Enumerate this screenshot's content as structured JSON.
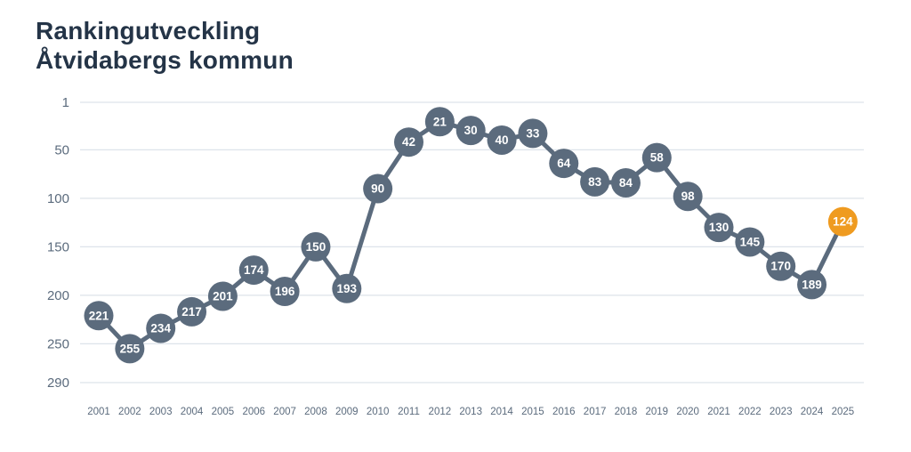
{
  "title": {
    "line1": "Rankingutveckling",
    "line2": "Åtvidabergs kommun"
  },
  "chart_data": {
    "type": "line",
    "title": "Rankingutveckling Åtvidabergs kommun",
    "x": [
      2001,
      2002,
      2003,
      2004,
      2005,
      2006,
      2007,
      2008,
      2009,
      2010,
      2011,
      2012,
      2013,
      2014,
      2015,
      2016,
      2017,
      2018,
      2019,
      2020,
      2021,
      2022,
      2023,
      2024,
      2025
    ],
    "values": [
      221,
      255,
      234,
      217,
      201,
      174,
      196,
      150,
      193,
      90,
      42,
      21,
      30,
      40,
      33,
      64,
      83,
      84,
      58,
      98,
      130,
      145,
      170,
      189,
      124
    ],
    "highlight_index": 24,
    "highlight_value": 124,
    "yticks": [
      1,
      50,
      100,
      150,
      200,
      250,
      290
    ],
    "ylim": [
      1,
      290
    ],
    "y_inverted": true,
    "xlabel": "",
    "ylabel": "",
    "grid": true,
    "legend": "none",
    "colors": {
      "point": "#5b6b7d",
      "line": "#5b6b7d",
      "highlight": "#ef9b20",
      "grid": "#dde3ea",
      "axis_label": "#5b6b7d",
      "value_text": "#ffffff",
      "title_text": "#243447"
    }
  }
}
